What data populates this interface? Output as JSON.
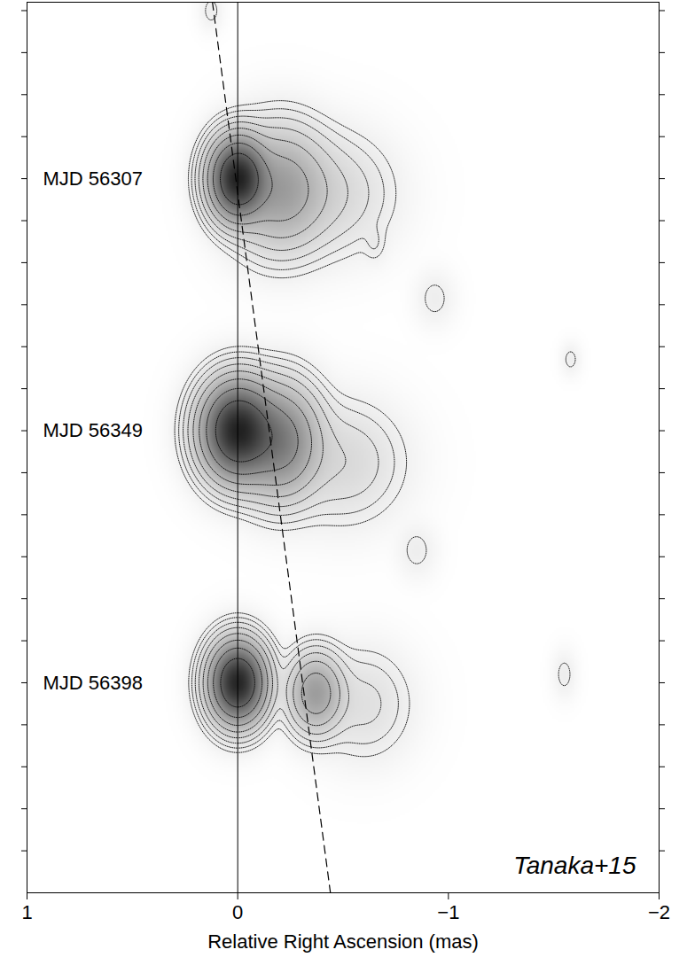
{
  "chart_data": {
    "type": "contour",
    "xlabel": "Relative Right Ascension (mas)",
    "xlim": [
      1,
      -2
    ],
    "xticks": [
      1,
      0,
      {
        "value": -1,
        "label": "−1"
      },
      {
        "value": -2,
        "label": "−2"
      }
    ],
    "ylim": [
      -4.2,
      0.04
    ],
    "yticks": [
      0,
      -0.2,
      -0.4,
      -0.6,
      -0.8,
      -1.0,
      -1.2,
      -1.4,
      -1.6,
      -1.8,
      -2.0,
      -2.2,
      -2.4,
      -2.6,
      -2.8,
      -3.0,
      -3.2,
      -3.4,
      -3.6,
      -3.8,
      -4.0
    ],
    "tick_labels": "x",
    "contour_levels": [
      0.004,
      0.008,
      0.016,
      0.032,
      0.064,
      0.128,
      0.256,
      0.512
    ],
    "epochs": [
      {
        "name": "MJD 56307",
        "y": -0.8,
        "components": [
          {
            "x": 0,
            "y": -0.8,
            "flux": 1,
            "size_x": 0.07,
            "size_y": 0.1
          },
          {
            "x": -0.2,
            "y": -0.85,
            "flux": 0.2,
            "size_x": 0.12,
            "size_y": 0.15
          },
          {
            "x": -0.45,
            "y": -0.87,
            "flux": 0.03,
            "size_x": 0.15,
            "size_y": 0.15
          },
          {
            "x": 0.126,
            "y": 0.0,
            "flux": 0.006,
            "size_x": 0.03,
            "size_y": 0.05
          },
          {
            "x": -0.65,
            "y": -1.11,
            "flux": 0.006,
            "size_x": 0.03,
            "size_y": 0.05
          },
          {
            "x": -0.935,
            "y": -1.37,
            "flux": 0.006,
            "size_x": 0.05,
            "size_y": 0.07
          },
          {
            "x": -1.58,
            "y": -1.66,
            "flux": 0.006,
            "size_x": 0.025,
            "size_y": 0.04
          }
        ]
      },
      {
        "name": "MJD 56349",
        "y": -2.0,
        "components": [
          {
            "x": 0,
            "y": -2.0,
            "flux": 1,
            "size_x": 0.09,
            "size_y": 0.12
          },
          {
            "x": -0.2,
            "y": -2.05,
            "flux": 0.35,
            "size_x": 0.1,
            "size_y": 0.14
          },
          {
            "x": -0.5,
            "y": -2.15,
            "flux": 0.03,
            "size_x": 0.15,
            "size_y": 0.15
          },
          {
            "x": -0.85,
            "y": -2.57,
            "flux": 0.006,
            "size_x": 0.05,
            "size_y": 0.07
          }
        ]
      },
      {
        "name": "MJD 56398",
        "y": -3.2,
        "components": [
          {
            "x": 0,
            "y": -3.2,
            "flux": 1,
            "size_x": 0.07,
            "size_y": 0.1
          },
          {
            "x": -0.37,
            "y": -3.25,
            "flux": 0.2,
            "size_x": 0.07,
            "size_y": 0.1
          },
          {
            "x": -0.6,
            "y": -3.3,
            "flux": 0.02,
            "size_x": 0.12,
            "size_y": 0.14
          },
          {
            "x": -1.55,
            "y": -3.16,
            "flux": 0.006,
            "size_x": 0.03,
            "size_y": 0.06
          }
        ]
      }
    ],
    "dashed_line": {
      "x": [
        0.12,
        -0.44
      ],
      "y": [
        0.04,
        -4.2
      ]
    },
    "reference_line_x": 0,
    "annotation": "Tanaka+15"
  }
}
